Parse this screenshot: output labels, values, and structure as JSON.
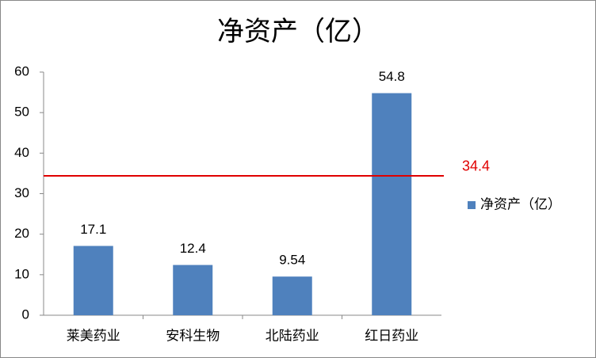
{
  "chart_data": {
    "type": "bar",
    "title": "净资产（亿）",
    "categories": [
      "莱美药业",
      "安科生物",
      "北陆药业",
      "红日药业"
    ],
    "series": [
      {
        "name": "净资产（亿）",
        "color": "#4f81bd",
        "values": [
          17.1,
          12.4,
          9.54,
          54.8
        ]
      }
    ],
    "ylim": [
      0,
      60
    ],
    "yticks": [
      0,
      10,
      20,
      30,
      40,
      50,
      60
    ],
    "grid": false,
    "reference_line": {
      "value": 34.4,
      "color": "#e00000"
    },
    "legend": "right"
  }
}
